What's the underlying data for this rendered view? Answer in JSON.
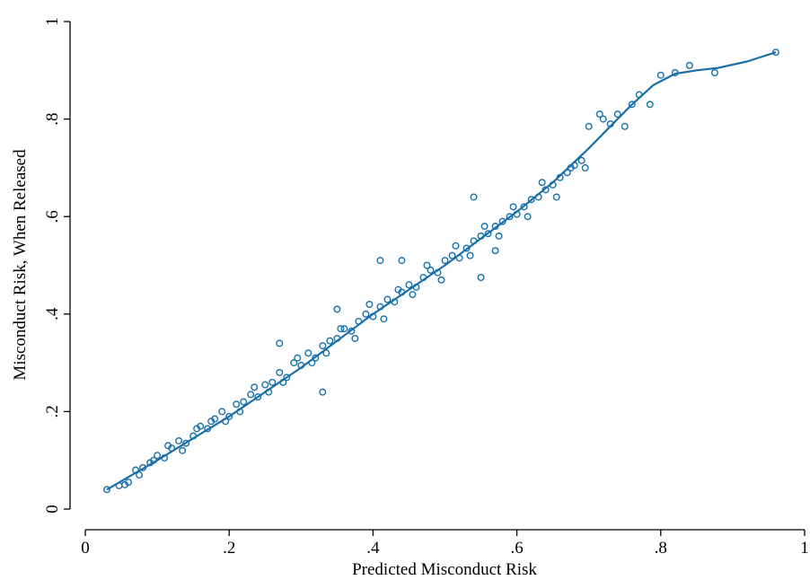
{
  "chart_data": {
    "type": "scatter",
    "xlabel": "Predicted Misconduct Risk",
    "ylabel": "Misconduct Risk, When Released",
    "color": "#1a6fa8",
    "xlim": [
      0,
      1
    ],
    "ylim": [
      0,
      1
    ],
    "xticks": [
      0,
      {
        "value": 0.2,
        "label": ".2"
      },
      {
        "value": 0.4,
        "label": ".4"
      },
      {
        "value": 0.6,
        "label": ".6"
      },
      {
        "value": 0.8,
        "label": ".8"
      },
      1
    ],
    "yticks": [
      0,
      {
        "value": 0.2,
        "label": ".2"
      },
      {
        "value": 0.4,
        "label": ".4"
      },
      {
        "value": 0.6,
        "label": ".6"
      },
      {
        "value": 0.8,
        "label": ".8"
      },
      1
    ],
    "points": {
      "x": [
        0.07,
        0.08,
        0.09,
        0.1,
        0.11,
        0.12,
        0.13,
        0.14,
        0.15,
        0.16,
        0.17,
        0.18,
        0.19,
        0.2,
        0.21,
        0.22,
        0.23,
        0.24,
        0.25,
        0.26,
        0.27,
        0.28,
        0.29,
        0.3,
        0.31,
        0.32,
        0.33,
        0.34,
        0.35,
        0.36,
        0.37,
        0.38,
        0.39,
        0.4,
        0.41,
        0.42,
        0.43,
        0.44,
        0.45,
        0.46,
        0.47,
        0.48,
        0.49,
        0.5,
        0.51,
        0.52,
        0.53,
        0.54,
        0.55,
        0.56,
        0.57,
        0.58,
        0.59,
        0.6,
        0.61,
        0.62,
        0.63,
        0.64,
        0.65,
        0.66,
        0.67,
        0.68,
        0.69,
        0.075,
        0.095,
        0.115,
        0.135,
        0.155,
        0.175,
        0.195,
        0.215,
        0.235,
        0.255,
        0.275,
        0.295,
        0.315,
        0.335,
        0.355,
        0.375,
        0.395,
        0.415,
        0.435,
        0.455,
        0.475,
        0.495,
        0.515,
        0.535,
        0.555,
        0.575,
        0.595,
        0.615,
        0.635,
        0.655,
        0.675,
        0.695,
        0.03,
        0.047,
        0.055,
        0.06,
        0.7,
        0.715,
        0.72,
        0.73,
        0.74,
        0.75,
        0.76,
        0.77,
        0.785,
        0.8,
        0.82,
        0.84,
        0.875,
        0.96,
        0.55,
        0.57,
        0.54,
        0.33,
        0.27,
        0.35,
        0.41,
        0.44
      ],
      "y": [
        0.08,
        0.085,
        0.095,
        0.11,
        0.105,
        0.125,
        0.14,
        0.135,
        0.15,
        0.17,
        0.165,
        0.185,
        0.2,
        0.19,
        0.215,
        0.22,
        0.235,
        0.23,
        0.255,
        0.26,
        0.28,
        0.27,
        0.3,
        0.295,
        0.32,
        0.31,
        0.335,
        0.345,
        0.35,
        0.37,
        0.365,
        0.385,
        0.4,
        0.395,
        0.415,
        0.43,
        0.425,
        0.445,
        0.46,
        0.455,
        0.475,
        0.49,
        0.485,
        0.51,
        0.52,
        0.515,
        0.535,
        0.55,
        0.56,
        0.565,
        0.58,
        0.59,
        0.6,
        0.605,
        0.62,
        0.635,
        0.64,
        0.655,
        0.665,
        0.68,
        0.69,
        0.705,
        0.715,
        0.07,
        0.1,
        0.13,
        0.12,
        0.165,
        0.18,
        0.18,
        0.2,
        0.25,
        0.24,
        0.26,
        0.31,
        0.3,
        0.32,
        0.37,
        0.35,
        0.42,
        0.39,
        0.45,
        0.44,
        0.5,
        0.47,
        0.54,
        0.52,
        0.58,
        0.56,
        0.62,
        0.6,
        0.67,
        0.64,
        0.7,
        0.7,
        0.04,
        0.048,
        0.05,
        0.055,
        0.785,
        0.81,
        0.8,
        0.79,
        0.81,
        0.785,
        0.83,
        0.85,
        0.83,
        0.89,
        0.895,
        0.91,
        0.895,
        0.937,
        0.475,
        0.53,
        0.64,
        0.24,
        0.34,
        0.41,
        0.51,
        0.51
      ]
    },
    "fit_line": {
      "x": [
        0.03,
        0.1,
        0.2,
        0.3,
        0.4,
        0.5,
        0.6,
        0.65,
        0.7,
        0.73,
        0.76,
        0.79,
        0.82,
        0.85,
        0.88,
        0.92,
        0.96
      ],
      "y": [
        0.04,
        0.1,
        0.19,
        0.29,
        0.4,
        0.5,
        0.61,
        0.67,
        0.74,
        0.785,
        0.83,
        0.87,
        0.893,
        0.9,
        0.905,
        0.918,
        0.937
      ]
    }
  }
}
